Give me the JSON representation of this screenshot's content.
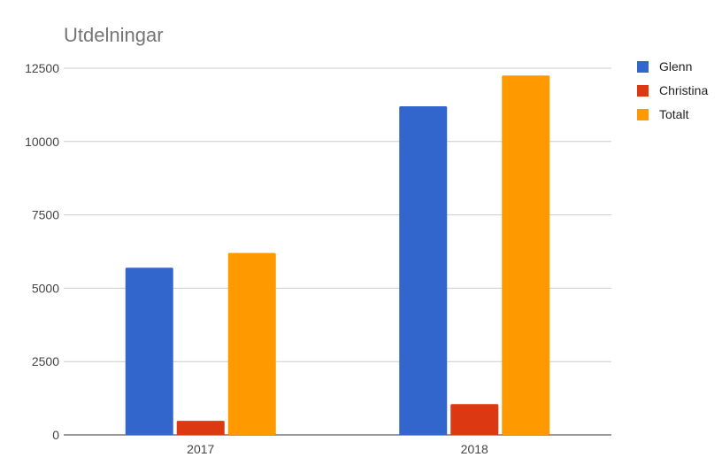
{
  "chart_data": {
    "type": "bar",
    "title": "Utdelningar",
    "categories": [
      "2017",
      "2018"
    ],
    "series": [
      {
        "name": "Glenn",
        "values": [
          5700,
          11200
        ],
        "color": "#3366cc"
      },
      {
        "name": "Christina",
        "values": [
          480,
          1050
        ],
        "color": "#dc3912"
      },
      {
        "name": "Totalt",
        "values": [
          6200,
          12250
        ],
        "color": "#ff9900"
      }
    ],
    "ylim": [
      0,
      12500
    ],
    "yticks": [
      0,
      2500,
      5000,
      7500,
      10000,
      12500
    ],
    "grid": true,
    "legend": "right"
  }
}
